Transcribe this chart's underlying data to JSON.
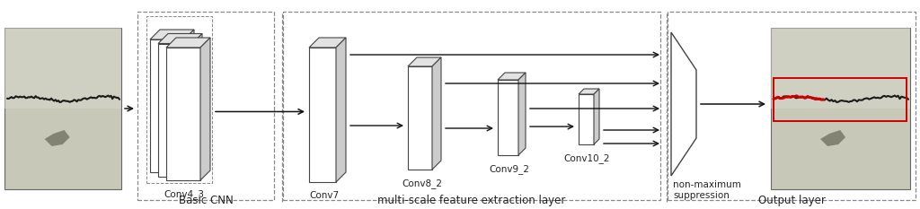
{
  "fig_width": 10.24,
  "fig_height": 2.33,
  "dpi": 100,
  "bg_color": "#ffffff",
  "box_edge_color": "#444444",
  "dashed_box_color": "#888888",
  "arrow_color": "#111111",
  "text_color": "#222222",
  "red_box_color": "#cc0000",
  "section_labels": [
    "Basic CNN",
    "multi-scale feature extraction layer",
    "Output layer"
  ],
  "layer_labels": [
    "Conv4_3",
    "Conv7",
    "Conv8_2",
    "Conv9_2",
    "Conv10_2",
    "non-maximum\nsuppression"
  ],
  "font_size": 7.5,
  "section_font_size": 8.5,
  "img_bg_light": "#c8c8b8",
  "img_bg_dark": "#a8a8a0",
  "crack_color": "#1a1a1a",
  "blob_color": "#666655"
}
